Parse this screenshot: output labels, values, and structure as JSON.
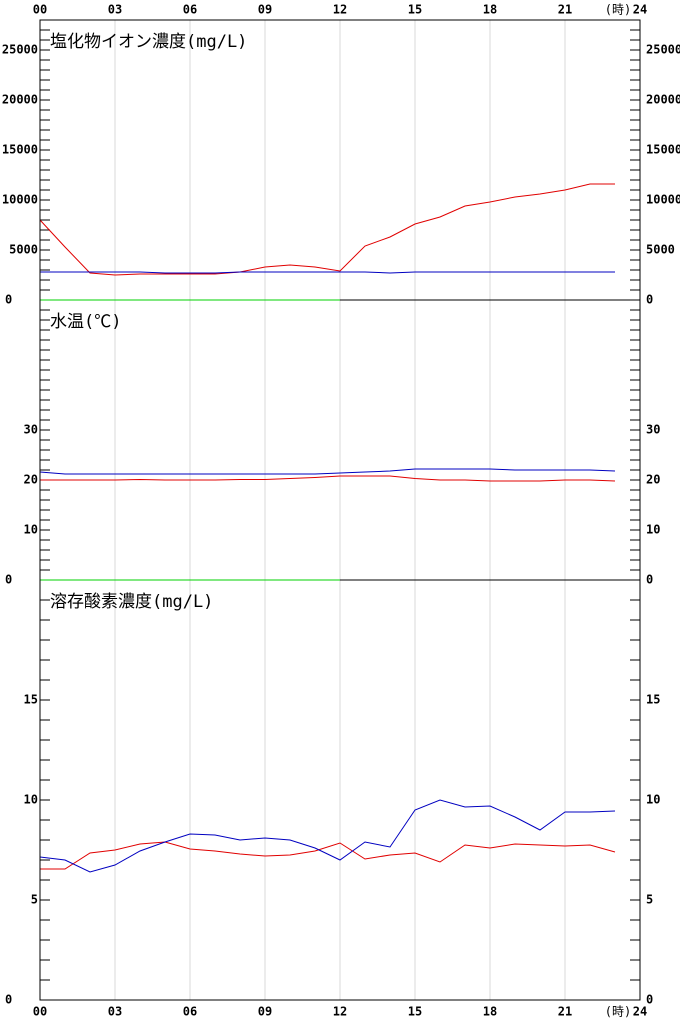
{
  "x_axis": {
    "xlim": [
      0,
      24
    ],
    "label": "(時)",
    "xticks": [
      {
        "value": 0,
        "label": "00"
      },
      {
        "value": 3,
        "label": "03"
      },
      {
        "value": 6,
        "label": "06"
      },
      {
        "value": 9,
        "label": "09"
      },
      12,
      15,
      18,
      21,
      24
    ],
    "grid": true
  },
  "chart_data": [
    {
      "type": "line",
      "title": "塩化物イオン濃度(mg/L)",
      "x": [
        0,
        1,
        2,
        3,
        4,
        5,
        6,
        7,
        8,
        9,
        10,
        11,
        12,
        13,
        14,
        15,
        16,
        17,
        18,
        19,
        20,
        21,
        22,
        23
      ],
      "ylim": [
        0,
        28000
      ],
      "yticks": [
        0,
        5000,
        10000,
        15000,
        20000,
        25000
      ],
      "series": [
        {
          "color": "#e00000",
          "values": [
            8000,
            5300,
            2700,
            2500,
            2600,
            2600,
            2600,
            2600,
            2800,
            3300,
            3500,
            3300,
            2900,
            5400,
            6300,
            7600,
            8300,
            9400,
            9800,
            10300,
            10600,
            11000,
            11600,
            11600
          ]
        },
        {
          "color": "#0000c0",
          "values": [
            2800,
            2800,
            2800,
            2800,
            2800,
            2700,
            2700,
            2700,
            2800,
            2800,
            2800,
            2800,
            2800,
            2800,
            2700,
            2800,
            2800,
            2800,
            2800,
            2800,
            2800,
            2800,
            2800,
            2800
          ]
        },
        {
          "color": "#00d000",
          "values": [
            0,
            0,
            0,
            0,
            0,
            0,
            0,
            0,
            0,
            0,
            0,
            0,
            0,
            null,
            null,
            null,
            null,
            null,
            null,
            null,
            null,
            null,
            null,
            null
          ]
        }
      ]
    },
    {
      "type": "line",
      "title": "水温(℃)",
      "x": [
        0,
        1,
        2,
        3,
        4,
        5,
        6,
        7,
        8,
        9,
        10,
        11,
        12,
        13,
        14,
        15,
        16,
        17,
        18,
        19,
        20,
        21,
        22,
        23
      ],
      "ylim": [
        0,
        56
      ],
      "yticks": [
        0,
        10,
        20,
        30
      ],
      "series": [
        {
          "color": "#e00000",
          "values": [
            20,
            20,
            20,
            20,
            20.1,
            20,
            20,
            20,
            20.1,
            20.1,
            20.3,
            20.5,
            20.8,
            20.8,
            20.8,
            20.3,
            20,
            20,
            19.8,
            19.8,
            19.8,
            20,
            20,
            19.8
          ]
        },
        {
          "color": "#0000c0",
          "values": [
            21.6,
            21.2,
            21.2,
            21.2,
            21.2,
            21.2,
            21.2,
            21.2,
            21.2,
            21.2,
            21.2,
            21.2,
            21.4,
            21.6,
            21.8,
            22.2,
            22.2,
            22.2,
            22.2,
            22,
            22,
            22,
            22,
            21.8
          ]
        },
        {
          "color": "#00d000",
          "values": [
            0,
            0,
            0,
            0,
            0,
            0,
            0,
            0,
            0,
            0,
            0,
            0,
            0,
            null,
            null,
            null,
            null,
            null,
            null,
            null,
            null,
            null,
            null,
            null
          ]
        }
      ]
    },
    {
      "type": "line",
      "title": "溶存酸素濃度(mg/L)",
      "x": [
        0,
        1,
        2,
        3,
        4,
        5,
        6,
        7,
        8,
        9,
        10,
        11,
        12,
        13,
        14,
        15,
        16,
        17,
        18,
        19,
        20,
        21,
        22,
        23
      ],
      "ylim": [
        0,
        21
      ],
      "yticks": [
        0,
        5,
        10,
        15
      ],
      "series": [
        {
          "color": "#e00000",
          "values": [
            6.55,
            6.55,
            7.35,
            7.5,
            7.8,
            7.9,
            7.55,
            7.45,
            7.3,
            7.2,
            7.25,
            7.45,
            7.85,
            7.05,
            7.25,
            7.35,
            6.9,
            7.75,
            7.6,
            7.8,
            7.75,
            7.7,
            7.75,
            7.4
          ]
        },
        {
          "color": "#0000c0",
          "values": [
            7.15,
            7,
            6.4,
            6.75,
            7.45,
            7.9,
            8.3,
            8.25,
            8,
            8.1,
            8,
            7.6,
            7,
            7.9,
            7.65,
            9.5,
            10,
            9.65,
            9.7,
            9.15,
            8.5,
            9.4,
            9.4,
            9.45
          ]
        },
        {
          "color": "#00d000",
          "values": [
            0,
            0,
            0,
            0,
            0,
            0,
            0,
            0,
            0,
            0,
            0,
            0,
            0,
            null,
            null,
            null,
            null,
            null,
            null,
            null,
            null,
            null,
            null,
            null
          ]
        }
      ]
    }
  ]
}
